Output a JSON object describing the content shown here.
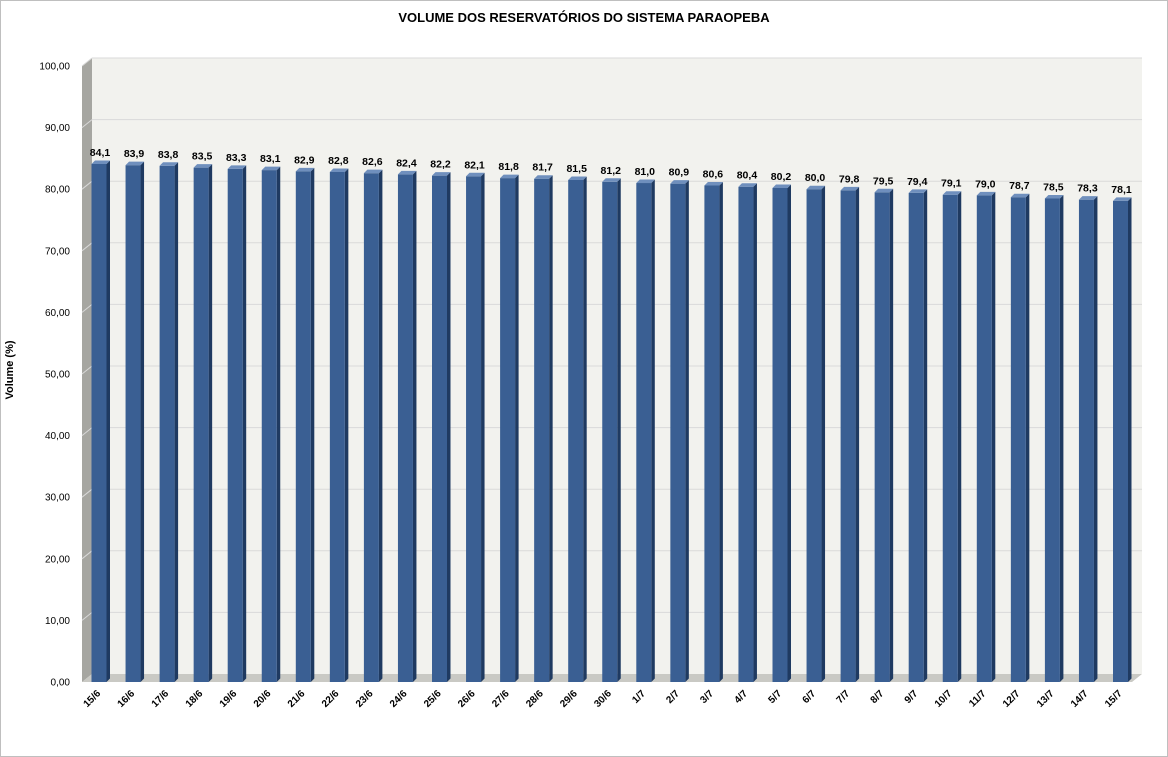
{
  "chart_data": {
    "type": "bar",
    "title": "VOLUME DOS RESERVATÓRIOS DO SISTEMA PARAOPEBA",
    "xlabel": "",
    "ylabel": "Volume (%)",
    "ylim": [
      0,
      100
    ],
    "yticks": [
      "0,00",
      "10,00",
      "20,00",
      "30,00",
      "40,00",
      "50,00",
      "60,00",
      "70,00",
      "80,00",
      "90,00",
      "100,00"
    ],
    "grid": true,
    "legend": "none",
    "categories": [
      "15/6",
      "16/6",
      "17/6",
      "18/6",
      "19/6",
      "20/6",
      "21/6",
      "22/6",
      "23/6",
      "24/6",
      "25/6",
      "26/6",
      "27/6",
      "28/6",
      "29/6",
      "30/6",
      "1/7",
      "2/7",
      "3/7",
      "4/7",
      "5/7",
      "6/7",
      "7/7",
      "8/7",
      "9/7",
      "10/7",
      "11/7",
      "12/7",
      "13/7",
      "14/7",
      "15/7"
    ],
    "values": [
      84.1,
      83.9,
      83.8,
      83.5,
      83.3,
      83.1,
      82.9,
      82.8,
      82.6,
      82.4,
      82.2,
      82.1,
      81.8,
      81.7,
      81.5,
      81.2,
      81.0,
      80.9,
      80.6,
      80.4,
      80.2,
      80.0,
      79.8,
      79.5,
      79.4,
      79.1,
      79.0,
      78.7,
      78.5,
      78.3,
      78.1
    ],
    "data_labels": [
      "84,1",
      "83,9",
      "83,8",
      "83,5",
      "83,3",
      "83,1",
      "82,9",
      "82,8",
      "82,6",
      "82,4",
      "82,2",
      "82,1",
      "81,8",
      "81,7",
      "81,5",
      "81,2",
      "81,0",
      "80,9",
      "80,6",
      "80,4",
      "80,2",
      "80,0",
      "79,8",
      "79,5",
      "79,4",
      "79,1",
      "79,0",
      "78,7",
      "78,5",
      "78,3",
      "78,1"
    ],
    "colors": {
      "bar_front": "#3a5f93",
      "bar_side": "#1f3a61",
      "bar_top": "#6f8fbd",
      "plot_back": "#f2f2ee",
      "plot_floor": "#c9c9c4",
      "plot_wall": "#a6a6a1",
      "grid": "#d9d9d9"
    }
  }
}
